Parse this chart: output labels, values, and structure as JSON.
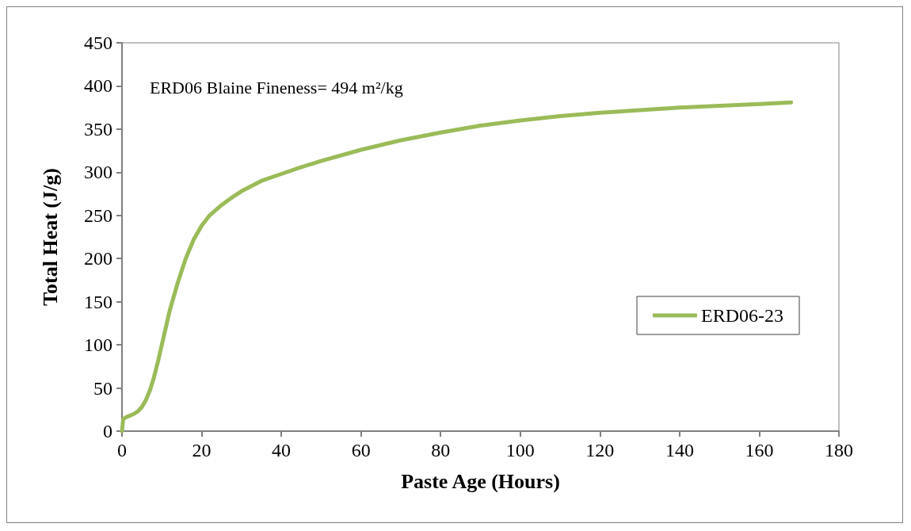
{
  "chart_data": {
    "type": "line",
    "xlabel": "Paste Age (Hours)",
    "ylabel": "Total Heat (J/g)",
    "annotations": [
      "ERD06 Blaine Fineness= 494 m²/kg"
    ],
    "xlim": [
      0,
      180
    ],
    "xticks": [
      0,
      20,
      40,
      60,
      80,
      100,
      120,
      140,
      160,
      180
    ],
    "ylim": [
      0,
      450
    ],
    "yticks": [
      0,
      50,
      100,
      150,
      200,
      250,
      300,
      350,
      400,
      450
    ],
    "grid": false,
    "legend": "right",
    "marker": "none",
    "line_style": "solid",
    "series": [
      {
        "name": "ERD06-23",
        "color": "#9bbb59",
        "x": [
          0,
          0.3,
          1,
          2,
          3,
          4,
          5,
          6,
          7,
          8,
          9,
          10,
          11,
          12,
          14,
          16,
          18,
          20,
          22,
          25,
          28,
          30,
          35,
          40,
          45,
          50,
          60,
          70,
          80,
          90,
          100,
          110,
          120,
          130,
          140,
          150,
          160,
          168
        ],
        "values": [
          0,
          14,
          16,
          18,
          20,
          23,
          28,
          36,
          47,
          62,
          80,
          100,
          120,
          140,
          172,
          200,
          222,
          238,
          250,
          262,
          272,
          278,
          290,
          298,
          306,
          313,
          326,
          337,
          346,
          354,
          360,
          365,
          369,
          372,
          375,
          377,
          379,
          381
        ]
      }
    ]
  }
}
